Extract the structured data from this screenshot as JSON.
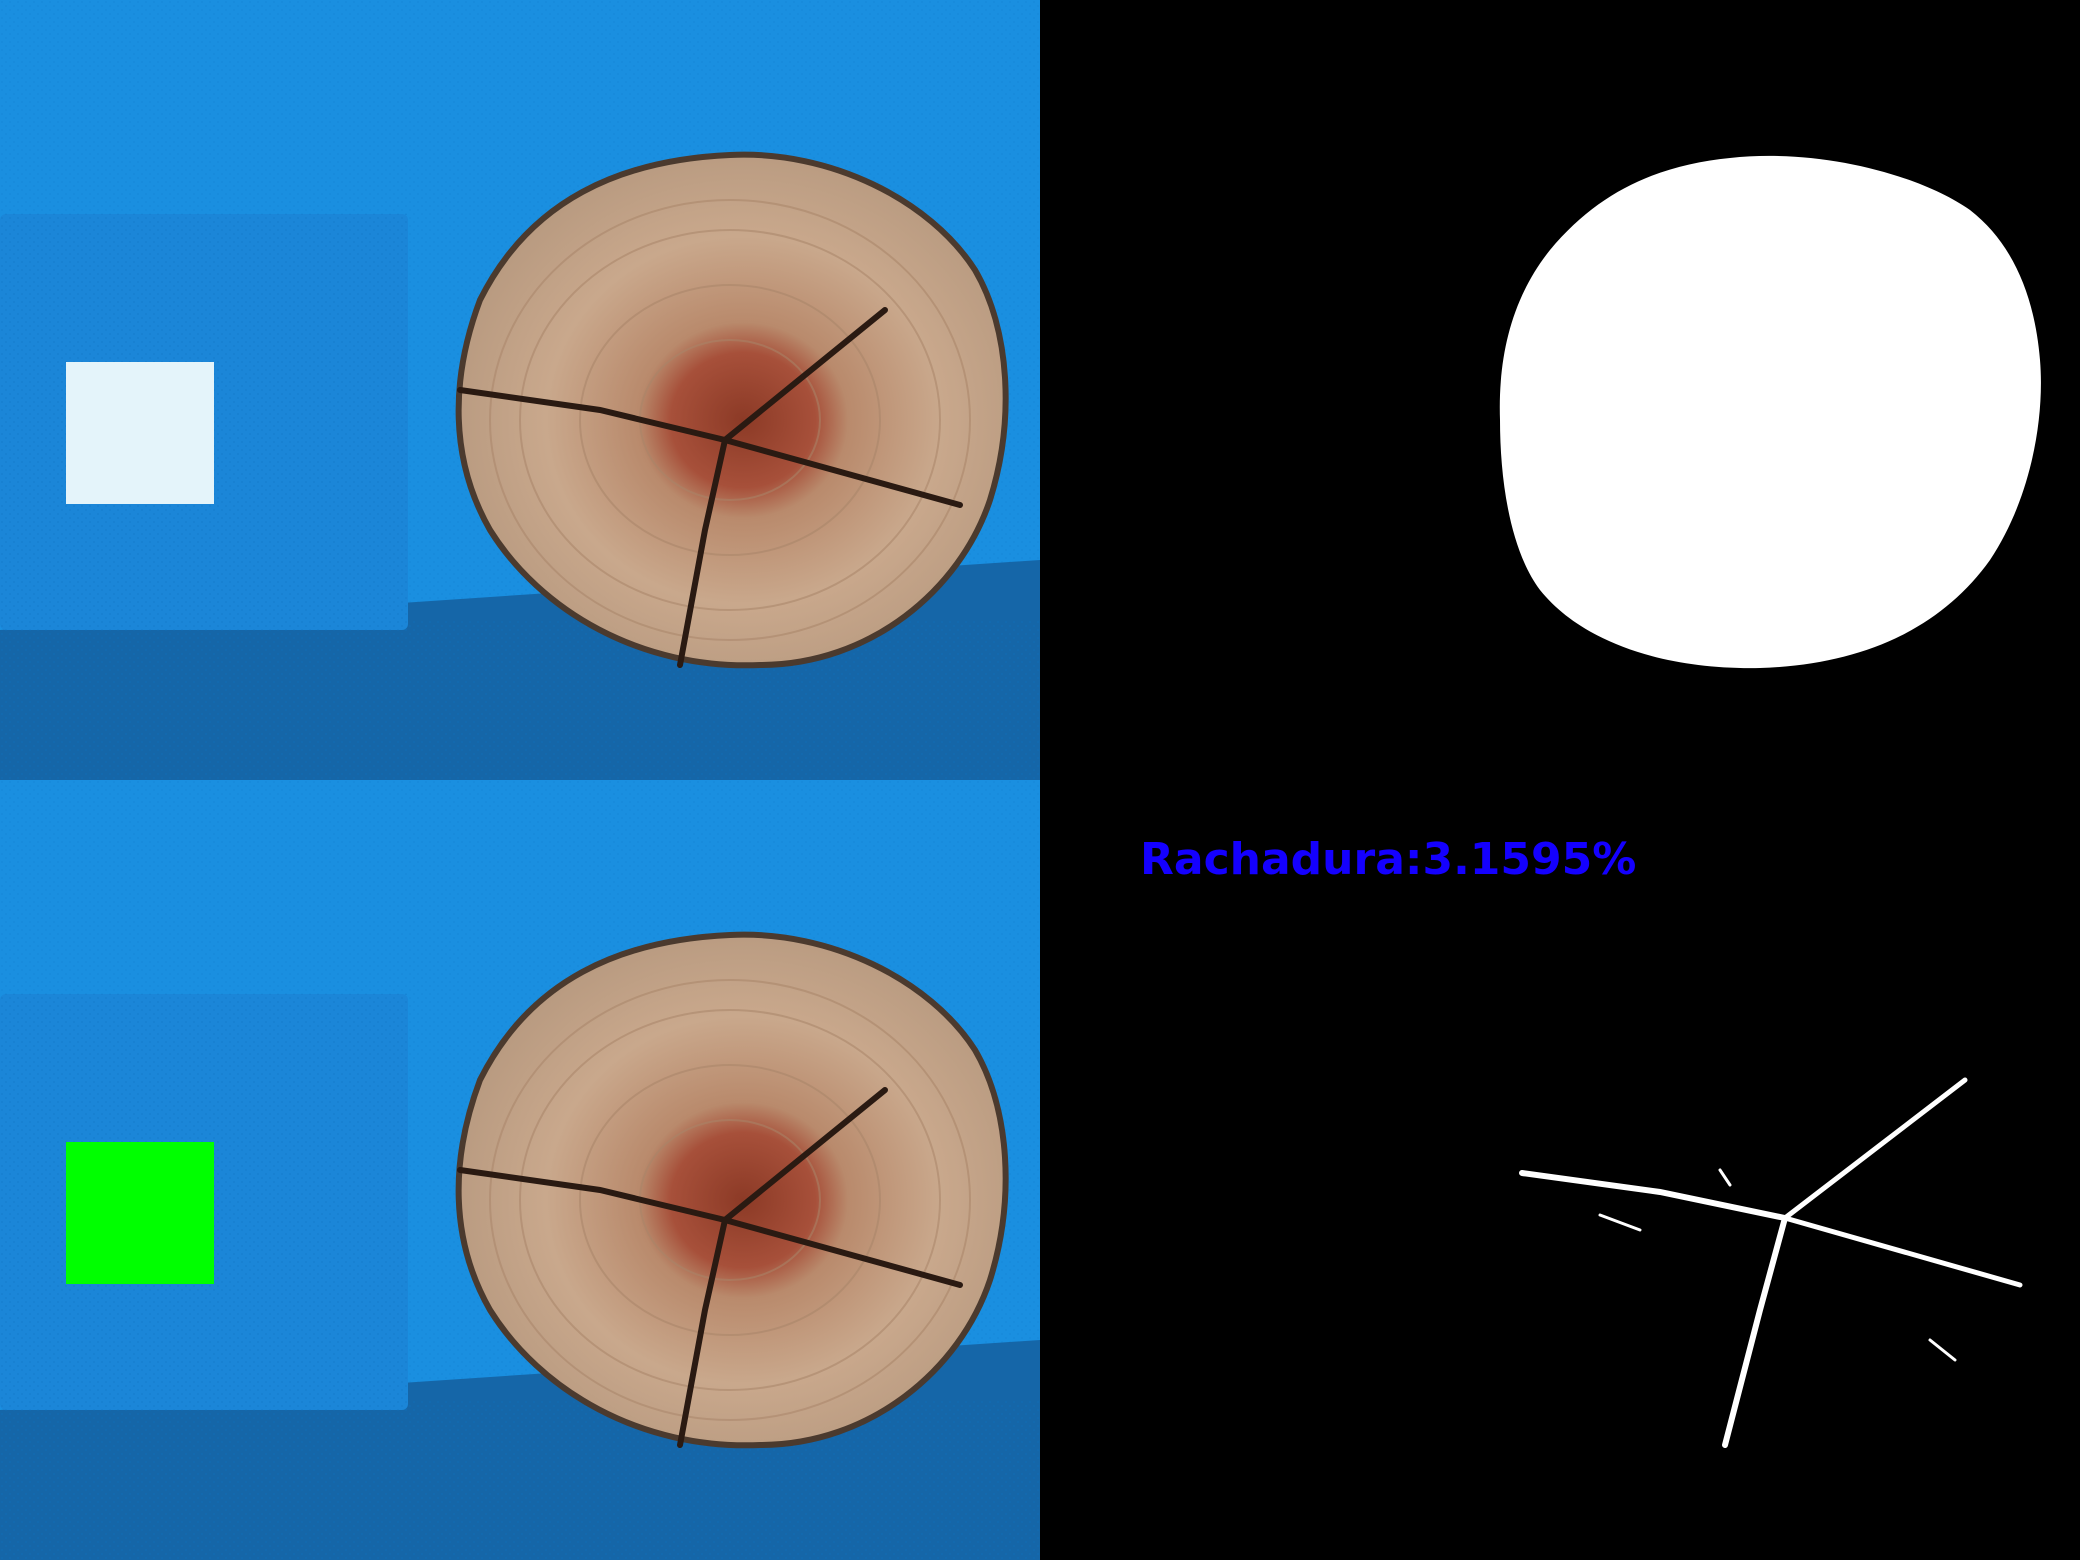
{
  "result": {
    "crack_label": "Rachadura:3.1595%"
  },
  "colors": {
    "background_blue": "#1a8fe0",
    "box_blue": "#1b86d8",
    "shelf_blue": "#1566a8",
    "reference_white": "#e4f4fa",
    "reference_green": "#00ff00",
    "wood_light": "#c9a78a",
    "wood_heart": "#a24a30",
    "mask_white": "#ffffff",
    "mask_black": "#000000",
    "label_blue": "#1400ff"
  }
}
